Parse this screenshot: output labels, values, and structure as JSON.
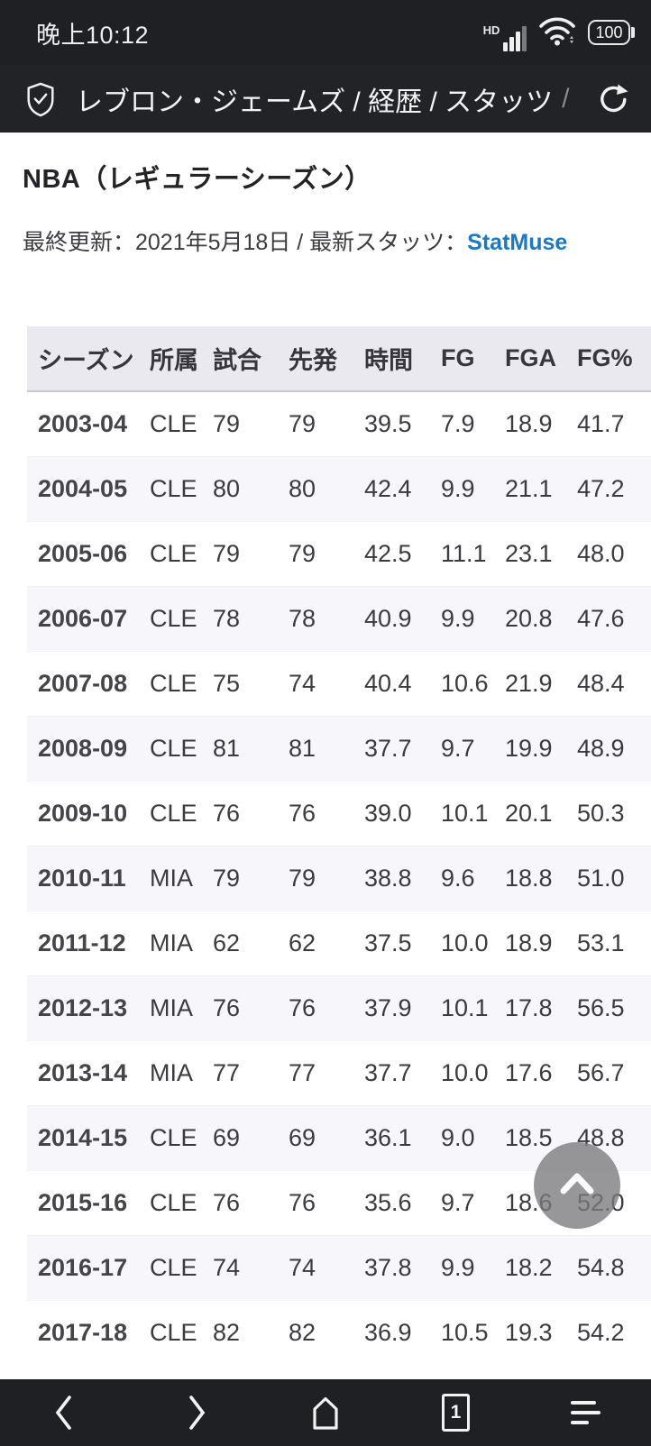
{
  "status_bar": {
    "time": "晚上10:12",
    "hd_label": "HD",
    "battery_level": "100"
  },
  "browser": {
    "page_title": "レブロン・ジェームズ / 経歴 / スタッツ",
    "title_overflow": "/",
    "tab_count": "1"
  },
  "content": {
    "heading": "NBA（レギュラーシーズン）",
    "meta_prefix": "最終更新：2021年5月18日 / 最新スタッツ：",
    "meta_link": "StatMuse"
  },
  "table": {
    "columns": [
      "シーズン",
      "所属",
      "試合",
      "先発",
      "時間",
      "FG",
      "FGA",
      "FG%"
    ],
    "rows": [
      [
        "2003-04",
        "CLE",
        "79",
        "79",
        "39.5",
        "7.9",
        "18.9",
        "41.7"
      ],
      [
        "2004-05",
        "CLE",
        "80",
        "80",
        "42.4",
        "9.9",
        "21.1",
        "47.2"
      ],
      [
        "2005-06",
        "CLE",
        "79",
        "79",
        "42.5",
        "11.1",
        "23.1",
        "48.0"
      ],
      [
        "2006-07",
        "CLE",
        "78",
        "78",
        "40.9",
        "9.9",
        "20.8",
        "47.6"
      ],
      [
        "2007-08",
        "CLE",
        "75",
        "74",
        "40.4",
        "10.6",
        "21.9",
        "48.4"
      ],
      [
        "2008-09",
        "CLE",
        "81",
        "81",
        "37.7",
        "9.7",
        "19.9",
        "48.9"
      ],
      [
        "2009-10",
        "CLE",
        "76",
        "76",
        "39.0",
        "10.1",
        "20.1",
        "50.3"
      ],
      [
        "2010-11",
        "MIA",
        "79",
        "79",
        "38.8",
        "9.6",
        "18.8",
        "51.0"
      ],
      [
        "2011-12",
        "MIA",
        "62",
        "62",
        "37.5",
        "10.0",
        "18.9",
        "53.1"
      ],
      [
        "2012-13",
        "MIA",
        "76",
        "76",
        "37.9",
        "10.1",
        "17.8",
        "56.5"
      ],
      [
        "2013-14",
        "MIA",
        "77",
        "77",
        "37.7",
        "10.0",
        "17.6",
        "56.7"
      ],
      [
        "2014-15",
        "CLE",
        "69",
        "69",
        "36.1",
        "9.0",
        "18.5",
        "48.8"
      ],
      [
        "2015-16",
        "CLE",
        "76",
        "76",
        "35.6",
        "9.7",
        "18.6",
        "52.0"
      ],
      [
        "2016-17",
        "CLE",
        "74",
        "74",
        "37.8",
        "9.9",
        "18.2",
        "54.8"
      ],
      [
        "2017-18",
        "CLE",
        "82",
        "82",
        "36.9",
        "10.5",
        "19.3",
        "54.2"
      ]
    ]
  },
  "colors": {
    "chrome_bar_bg": "#1f2023",
    "link_blue": "#1c78bf",
    "table_header_bg": "#eae9f0",
    "row_stripe": "#f7f6fa"
  }
}
